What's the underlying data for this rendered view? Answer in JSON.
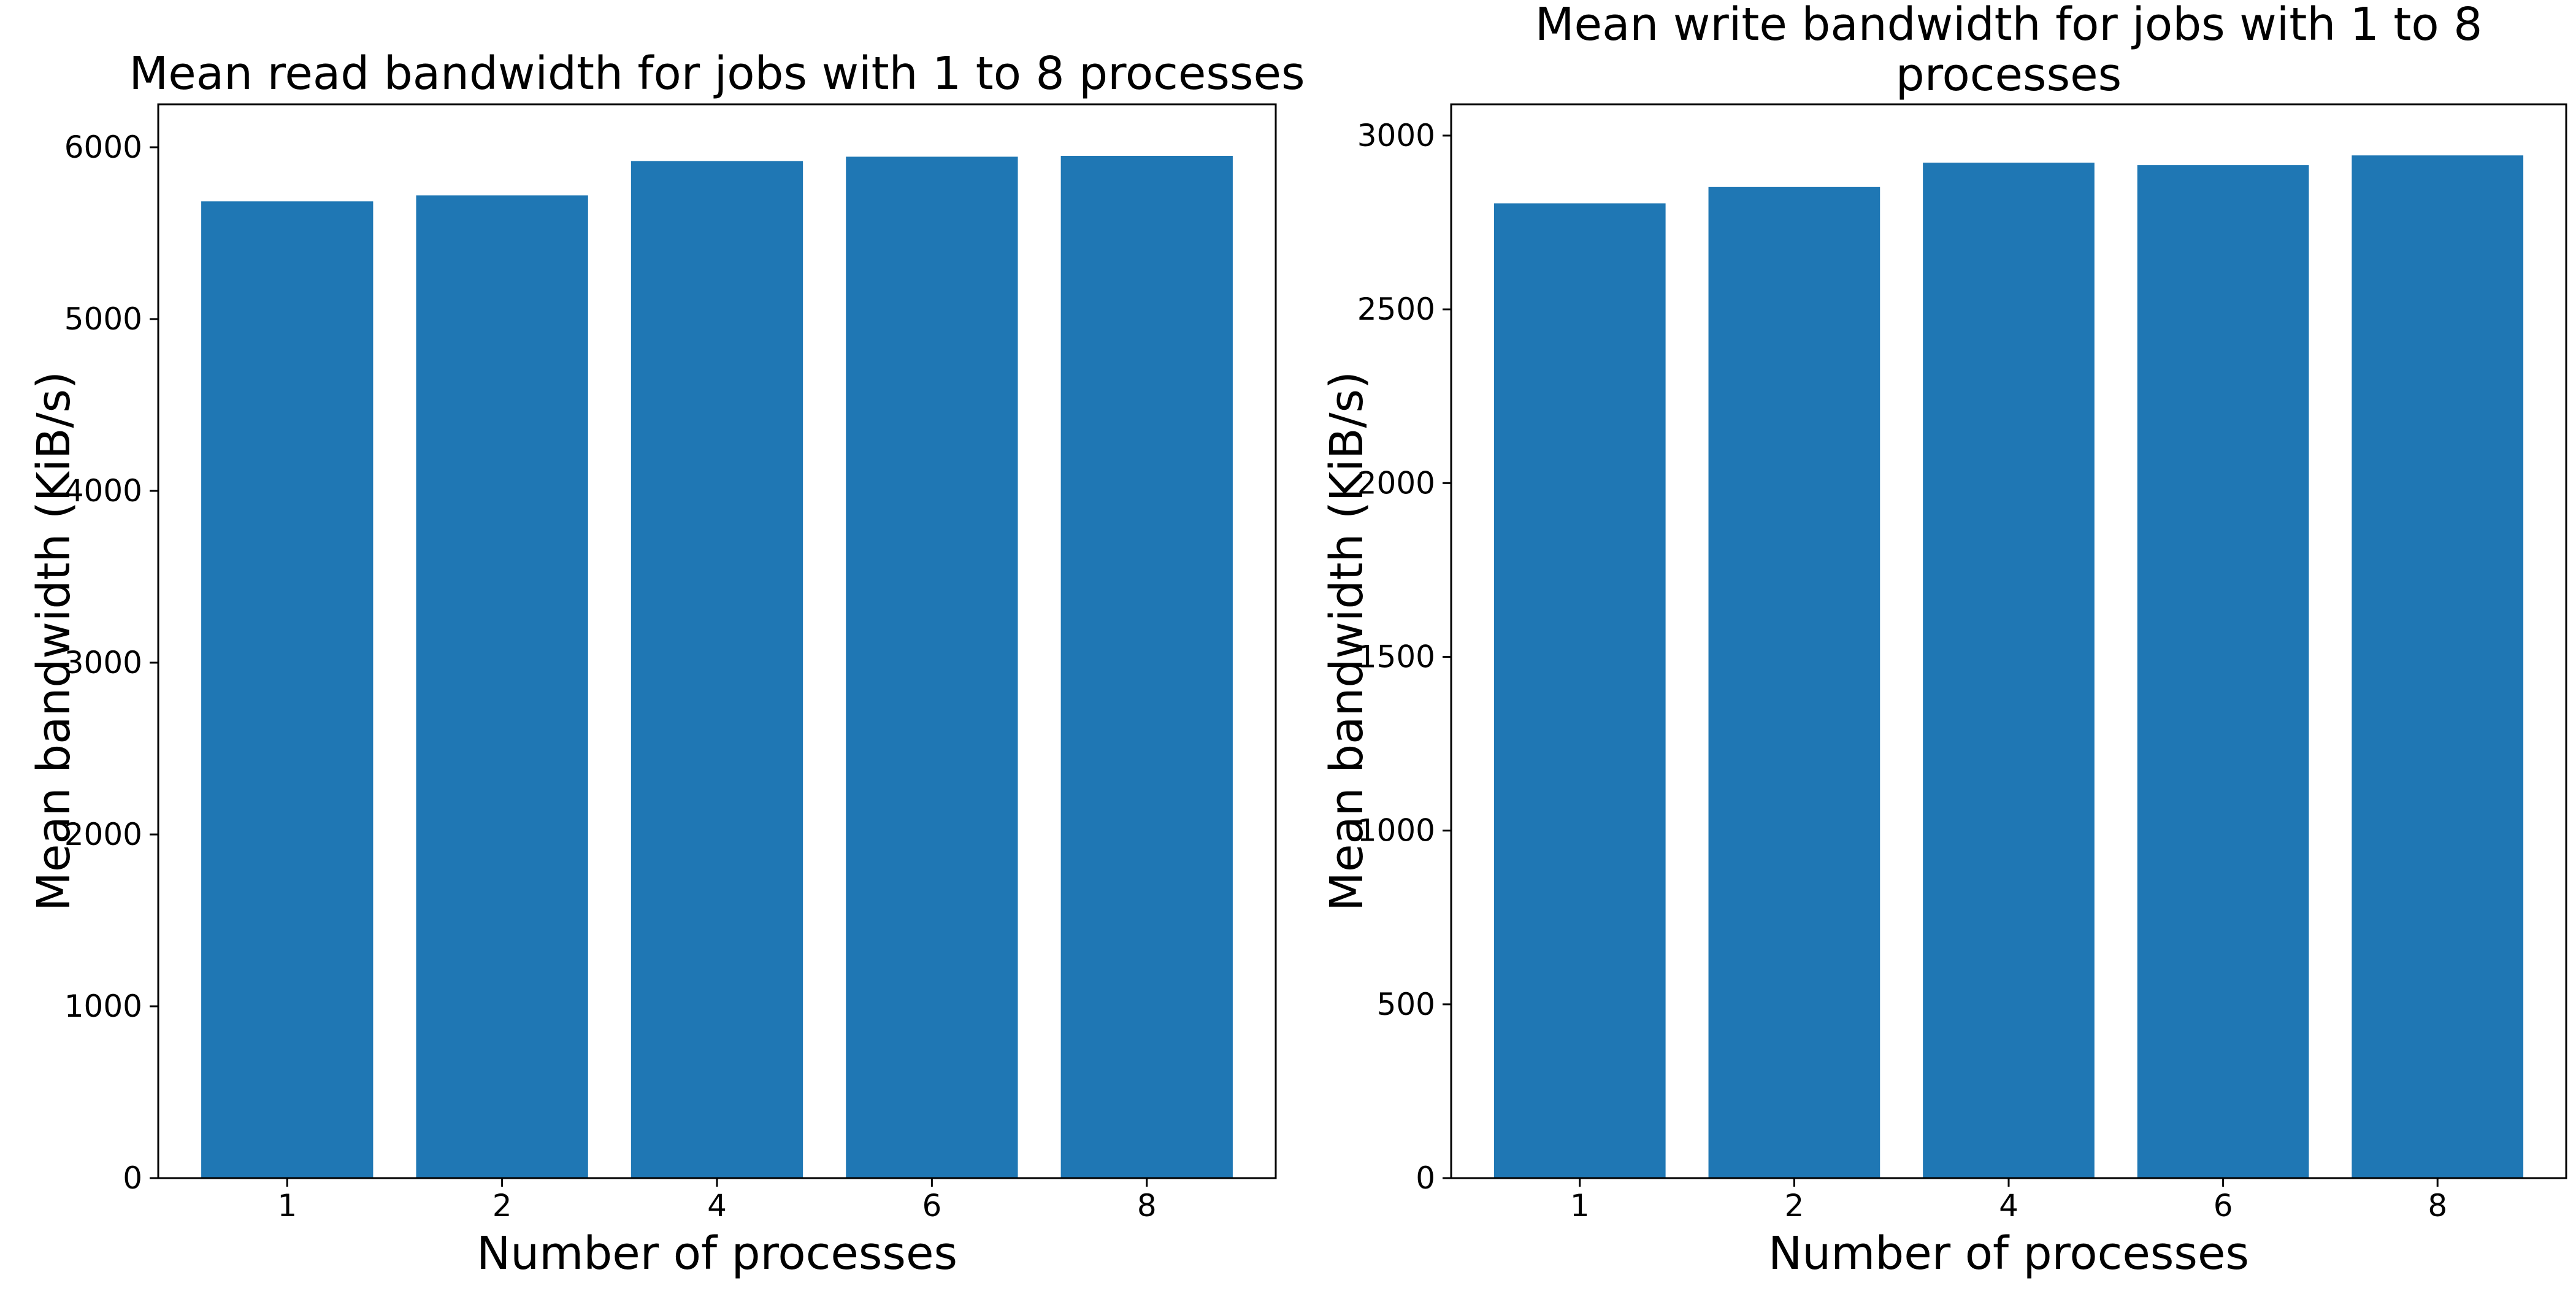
{
  "colors": {
    "bar": "#1f77b4",
    "axis": "#000000",
    "background": "#ffffff"
  },
  "chart_data": [
    {
      "type": "bar",
      "title": [
        "Mean read bandwidth for jobs with 1 to 8 processes"
      ],
      "xlabel": "Number of processes",
      "ylabel": "Mean bandwidth (KiB/s)",
      "categories": [
        "1",
        "2",
        "4",
        "6",
        "8"
      ],
      "values": [
        5685,
        5720,
        5920,
        5945,
        5950
      ],
      "ylim": [
        0,
        6250
      ],
      "yticks": [
        0,
        1000,
        2000,
        3000,
        4000,
        5000,
        6000
      ],
      "grid": false,
      "legend": "none"
    },
    {
      "type": "bar",
      "title": [
        "Mean write bandwidth for jobs with 1 to 8",
        "processes"
      ],
      "xlabel": "Number of processes",
      "ylabel": "Mean bandwidth (KiB/s)",
      "categories": [
        "1",
        "2",
        "4",
        "6",
        "8"
      ],
      "values": [
        2805,
        2852,
        2922,
        2915,
        2943
      ],
      "ylim": [
        0,
        3090
      ],
      "yticks": [
        0,
        500,
        1000,
        1500,
        2000,
        2500,
        3000
      ],
      "grid": false,
      "legend": "none"
    }
  ]
}
